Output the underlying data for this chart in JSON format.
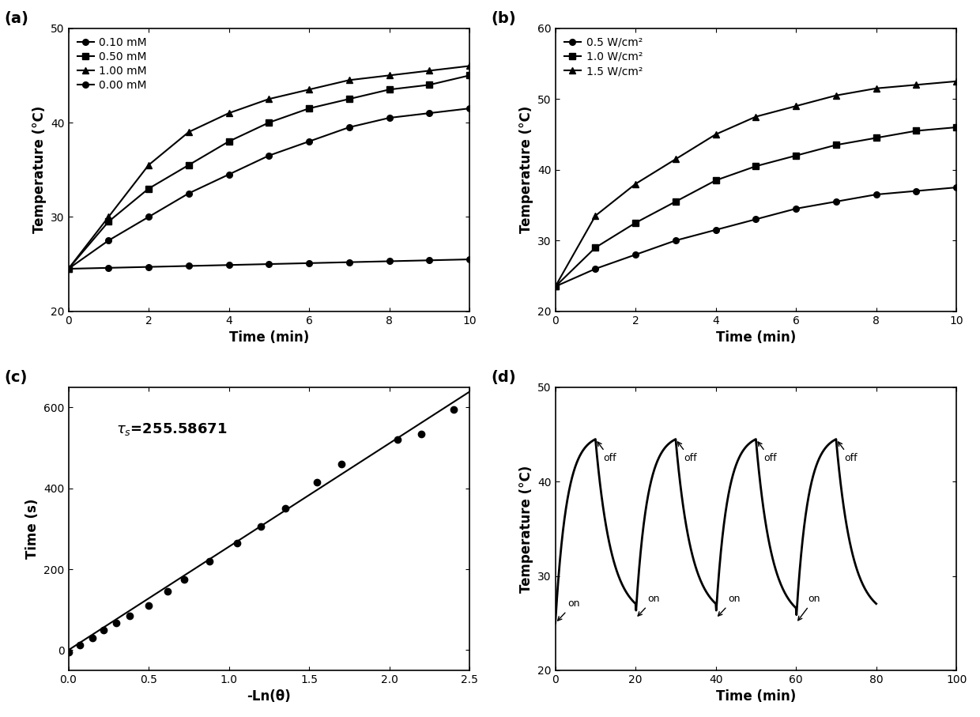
{
  "panel_a": {
    "title": "(a)",
    "xlabel": "Time (min)",
    "ylabel": "Temperature (°C)",
    "xlim": [
      0,
      10
    ],
    "ylim": [
      20,
      50
    ],
    "yticks": [
      20,
      30,
      40,
      50
    ],
    "xticks": [
      0,
      2,
      4,
      6,
      8,
      10
    ],
    "series": [
      {
        "label": "0.10 mM",
        "x": [
          0,
          1,
          2,
          3,
          4,
          5,
          6,
          7,
          8,
          9,
          10
        ],
        "y": [
          24.5,
          27.5,
          30.0,
          32.5,
          34.5,
          36.5,
          38.0,
          39.5,
          40.5,
          41.0,
          41.5
        ],
        "marker": "o"
      },
      {
        "label": "0.50 mM",
        "x": [
          0,
          1,
          2,
          3,
          4,
          5,
          6,
          7,
          8,
          9,
          10
        ],
        "y": [
          24.5,
          29.5,
          33.0,
          35.5,
          38.0,
          40.0,
          41.5,
          42.5,
          43.5,
          44.0,
          45.0
        ],
        "marker": "s"
      },
      {
        "label": "1.00 mM",
        "x": [
          0,
          1,
          2,
          3,
          4,
          5,
          6,
          7,
          8,
          9,
          10
        ],
        "y": [
          24.5,
          30.0,
          35.5,
          39.0,
          41.0,
          42.5,
          43.5,
          44.5,
          45.0,
          45.5,
          46.0
        ],
        "marker": "^"
      },
      {
        "label": "0.00 mM",
        "x": [
          0,
          1,
          2,
          3,
          4,
          5,
          6,
          7,
          8,
          9,
          10
        ],
        "y": [
          24.5,
          24.6,
          24.7,
          24.8,
          24.9,
          25.0,
          25.1,
          25.2,
          25.3,
          25.4,
          25.5
        ],
        "marker": "o"
      }
    ]
  },
  "panel_b": {
    "title": "(b)",
    "xlabel": "Time (min)",
    "ylabel": "Temperature (°C)",
    "xlim": [
      0,
      10
    ],
    "ylim": [
      20,
      60
    ],
    "yticks": [
      20,
      30,
      40,
      50,
      60
    ],
    "xticks": [
      0,
      2,
      4,
      6,
      8,
      10
    ],
    "series": [
      {
        "label": "0.5 W/cm²",
        "x": [
          0,
          1,
          2,
          3,
          4,
          5,
          6,
          7,
          8,
          9,
          10
        ],
        "y": [
          23.5,
          26.0,
          28.0,
          30.0,
          31.5,
          33.0,
          34.5,
          35.5,
          36.5,
          37.0,
          37.5
        ],
        "marker": "o"
      },
      {
        "label": "1.0 W/cm²",
        "x": [
          0,
          1,
          2,
          3,
          4,
          5,
          6,
          7,
          8,
          9,
          10
        ],
        "y": [
          23.5,
          29.0,
          32.5,
          35.5,
          38.5,
          40.5,
          42.0,
          43.5,
          44.5,
          45.5,
          46.0
        ],
        "marker": "s"
      },
      {
        "label": "1.5 W/cm²",
        "x": [
          0,
          1,
          2,
          3,
          4,
          5,
          6,
          7,
          8,
          9,
          10
        ],
        "y": [
          23.5,
          33.5,
          38.0,
          41.5,
          45.0,
          47.5,
          49.0,
          50.5,
          51.5,
          52.0,
          52.5
        ],
        "marker": "^"
      }
    ]
  },
  "panel_c": {
    "title": "(c)",
    "xlabel": "-Ln(θ)",
    "ylabel": "Time (s)",
    "xlim": [
      0.0,
      2.5
    ],
    "ylim": [
      -50,
      650
    ],
    "yticks": [
      0,
      200,
      400,
      600
    ],
    "xticks": [
      0.0,
      0.5,
      1.0,
      1.5,
      2.0,
      2.5
    ],
    "annotation": "$\\tau_s$=255.58671",
    "x_data": [
      0.0,
      0.07,
      0.15,
      0.22,
      0.3,
      0.38,
      0.5,
      0.62,
      0.72,
      0.88,
      1.05,
      1.2,
      1.35,
      1.55,
      1.7,
      2.05,
      2.2,
      2.4
    ],
    "y_data": [
      -5,
      12,
      30,
      50,
      68,
      85,
      110,
      145,
      175,
      220,
      265,
      305,
      350,
      415,
      460,
      520,
      535,
      595
    ]
  },
  "panel_d": {
    "title": "(d)",
    "xlabel": "Time (min)",
    "ylabel": "Temperature (°C)",
    "xlim": [
      0,
      100
    ],
    "ylim": [
      20,
      50
    ],
    "yticks": [
      20,
      30,
      40,
      50
    ],
    "xticks": [
      0,
      20,
      40,
      60,
      80,
      100
    ],
    "on_positions": [
      [
        0,
        25.0
      ],
      [
        18,
        25.5
      ],
      [
        38,
        25.5
      ],
      [
        58,
        25.5
      ]
    ],
    "off_positions": [
      [
        10,
        44.5
      ],
      [
        30,
        44.5
      ],
      [
        50,
        44.5
      ],
      [
        70,
        44.5
      ]
    ]
  },
  "line_color": "#000000",
  "marker_color": "#000000",
  "background": "#ffffff",
  "fontsize_label": 12,
  "fontsize_tick": 10,
  "fontsize_legend": 10,
  "fontsize_panel": 14
}
